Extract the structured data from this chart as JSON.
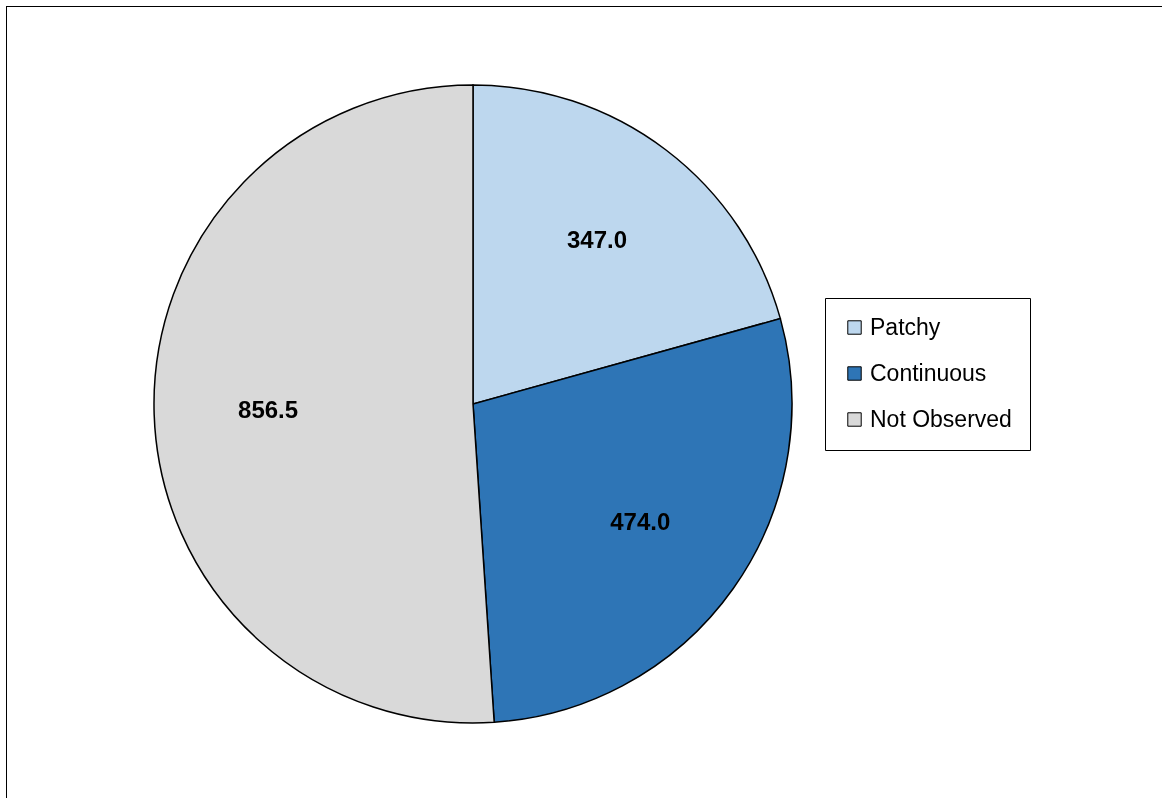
{
  "chart_data": {
    "type": "pie",
    "categories": [
      "Patchy",
      "Continuous",
      "Not Observed"
    ],
    "values": [
      347.0,
      474.0,
      856.5
    ],
    "colors": [
      "#bdd7ee",
      "#2e75b6",
      "#d9d9d9"
    ],
    "value_labels": [
      "347.0",
      "474.0",
      "856.5"
    ],
    "legend": "right"
  }
}
